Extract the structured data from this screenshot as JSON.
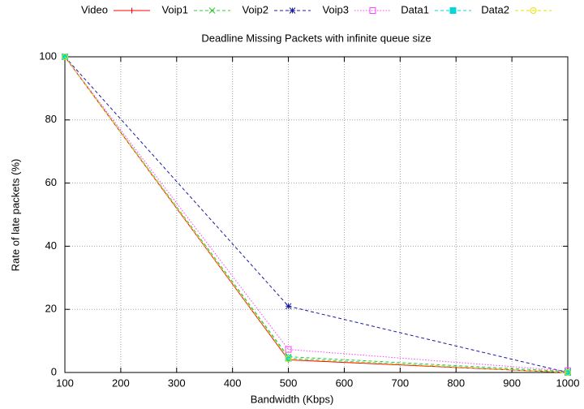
{
  "chart_data": {
    "type": "line",
    "title": "Deadline Missing Packets with infinite queue size",
    "xlabel": "Bandwidth (Kbps)",
    "ylabel": "Rate of late packets (%)",
    "x": [
      100,
      500,
      1000
    ],
    "series": [
      {
        "name": "Video",
        "color": "#ff0000",
        "marker": "plus",
        "dash": "solid",
        "values": [
          100,
          4,
          0
        ]
      },
      {
        "name": "Voip1",
        "color": "#30c830",
        "marker": "cross",
        "dash": "dashed",
        "values": [
          100,
          5,
          0.3
        ]
      },
      {
        "name": "Voip2",
        "color": "#1a1a9c",
        "marker": "star",
        "dash": "dashed",
        "values": [
          100,
          21,
          0
        ]
      },
      {
        "name": "Voip3",
        "color": "#ff40ff",
        "marker": "square",
        "dash": "dotted",
        "values": [
          100,
          7.3,
          0.5
        ]
      },
      {
        "name": "Data1",
        "color": "#00d8d8",
        "marker": "filled-square",
        "dash": "dashed",
        "values": [
          100,
          4.5,
          0
        ]
      },
      {
        "name": "Data2",
        "color": "#e8e000",
        "marker": "circle",
        "dash": "dashed",
        "values": [
          100,
          4.3,
          0
        ]
      }
    ],
    "xlim": [
      100,
      1000
    ],
    "xticks": [
      100,
      200,
      300,
      400,
      500,
      600,
      700,
      800,
      900,
      1000
    ],
    "ylim": [
      0,
      100
    ],
    "yticks": [
      0,
      20,
      40,
      60,
      80,
      100
    ],
    "grid": true,
    "legend": "top"
  }
}
